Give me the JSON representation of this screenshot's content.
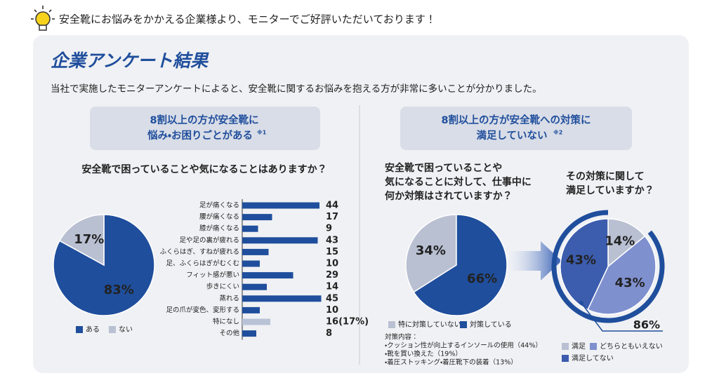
{
  "header": "安全靴にお悩みをかかえる企業様より、モニターでご好評いただいております！",
  "title": "企業アンケート結果",
  "description": "当社で実施したモニターアンケートによると、安全靴に関するお悩みを抱える方が非常に多いことが分かりました。",
  "left": {
    "callout": [
      "8割以上の方が安全靴に",
      "悩み・お困りごとがある"
    ],
    "callout_note": "※1",
    "question": "安全靴で困っていることや気になることはありますか？"
  },
  "right": {
    "callout": [
      "8割以上の方が安全靴への対策に",
      "満足していない"
    ],
    "callout_note": "※2"
  },
  "chart_data": [
    {
      "type": "pie",
      "direction": "clockwise",
      "categories": [
        "ある",
        "ない"
      ],
      "values": [
        83,
        17
      ],
      "value_labels": [
        "83%",
        "17%"
      ],
      "colors": [
        "#1f4e9c",
        "#b9c0d2"
      ]
    },
    {
      "type": "bar",
      "orientation": "horizontal",
      "categories": [
        "足が痛くなる",
        "腰が痛くなる",
        "膝が痛くなる",
        "足や足の裏が疲れる",
        "ふくらはぎ、すねが疲れる",
        "足、ふくらはぎがむくむ",
        "フィット感が悪い",
        "歩きにくい",
        "蒸れる",
        "足の爪が変色、変形する",
        "特になし",
        "その他"
      ],
      "values": [
        44,
        17,
        9,
        43,
        15,
        10,
        29,
        14,
        45,
        10,
        16,
        8
      ],
      "value_labels": [
        "44",
        "17",
        "9",
        "43",
        "15",
        "10",
        "29",
        "14",
        "45",
        "10",
        "16(17%)",
        "8"
      ],
      "colors": [
        "#1f4e9c",
        "#1f4e9c",
        "#1f4e9c",
        "#1f4e9c",
        "#1f4e9c",
        "#1f4e9c",
        "#1f4e9c",
        "#1f4e9c",
        "#1f4e9c",
        "#1f4e9c",
        "#b9c3d8",
        "#1f4e9c"
      ]
    },
    {
      "type": "pie",
      "direction": "counterclockwise",
      "title": [
        "安全靴で困っていることや",
        "気になることに対して、仕事中に",
        "何か対策はされていますか？"
      ],
      "categories": [
        "特に対策していない",
        "対策している"
      ],
      "values": [
        34,
        66
      ],
      "value_labels": [
        "34%",
        "66%"
      ],
      "colors": [
        "#b9c0d2",
        "#1f4e9c"
      ],
      "notes": [
        "対策内容：",
        "・クッション性が向上するインソールの使用（44%）",
        "・靴を買い換えた（19%）",
        "・着圧ストッキング・着圧靴下の装着（13%）"
      ]
    },
    {
      "type": "pie",
      "direction": "clockwise",
      "title": [
        "その対策に関して",
        "満足していますか？"
      ],
      "categories": [
        "満足",
        "どちらともいえない",
        "満足してない"
      ],
      "values": [
        14,
        43,
        43
      ],
      "value_labels": [
        "14%",
        "43%",
        "43%"
      ],
      "colors": [
        "#b9c0d2",
        "#7f90cf",
        "#3c5cad"
      ],
      "annotation": "86%"
    }
  ]
}
